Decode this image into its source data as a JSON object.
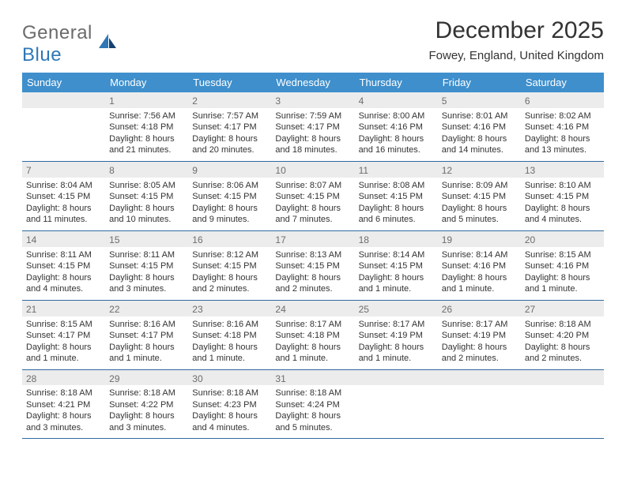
{
  "logo": {
    "word1": "General",
    "word2": "Blue"
  },
  "title": "December 2025",
  "location": "Fowey, England, United Kingdom",
  "colors": {
    "header_bg": "#3e8fcc",
    "header_text": "#ffffff",
    "daynum_bg": "#ececec",
    "daynum_text": "#6d6d6d",
    "border": "#2f6aa0",
    "logo_gray": "#6b6b6b",
    "logo_blue": "#2f77b6"
  },
  "daysOfWeek": [
    "Sunday",
    "Monday",
    "Tuesday",
    "Wednesday",
    "Thursday",
    "Friday",
    "Saturday"
  ],
  "weeks": [
    [
      {
        "n": "",
        "lines": []
      },
      {
        "n": "1",
        "lines": [
          "Sunrise: 7:56 AM",
          "Sunset: 4:18 PM",
          "Daylight: 8 hours and 21 minutes."
        ]
      },
      {
        "n": "2",
        "lines": [
          "Sunrise: 7:57 AM",
          "Sunset: 4:17 PM",
          "Daylight: 8 hours and 20 minutes."
        ]
      },
      {
        "n": "3",
        "lines": [
          "Sunrise: 7:59 AM",
          "Sunset: 4:17 PM",
          "Daylight: 8 hours and 18 minutes."
        ]
      },
      {
        "n": "4",
        "lines": [
          "Sunrise: 8:00 AM",
          "Sunset: 4:16 PM",
          "Daylight: 8 hours and 16 minutes."
        ]
      },
      {
        "n": "5",
        "lines": [
          "Sunrise: 8:01 AM",
          "Sunset: 4:16 PM",
          "Daylight: 8 hours and 14 minutes."
        ]
      },
      {
        "n": "6",
        "lines": [
          "Sunrise: 8:02 AM",
          "Sunset: 4:16 PM",
          "Daylight: 8 hours and 13 minutes."
        ]
      }
    ],
    [
      {
        "n": "7",
        "lines": [
          "Sunrise: 8:04 AM",
          "Sunset: 4:15 PM",
          "Daylight: 8 hours and 11 minutes."
        ]
      },
      {
        "n": "8",
        "lines": [
          "Sunrise: 8:05 AM",
          "Sunset: 4:15 PM",
          "Daylight: 8 hours and 10 minutes."
        ]
      },
      {
        "n": "9",
        "lines": [
          "Sunrise: 8:06 AM",
          "Sunset: 4:15 PM",
          "Daylight: 8 hours and 9 minutes."
        ]
      },
      {
        "n": "10",
        "lines": [
          "Sunrise: 8:07 AM",
          "Sunset: 4:15 PM",
          "Daylight: 8 hours and 7 minutes."
        ]
      },
      {
        "n": "11",
        "lines": [
          "Sunrise: 8:08 AM",
          "Sunset: 4:15 PM",
          "Daylight: 8 hours and 6 minutes."
        ]
      },
      {
        "n": "12",
        "lines": [
          "Sunrise: 8:09 AM",
          "Sunset: 4:15 PM",
          "Daylight: 8 hours and 5 minutes."
        ]
      },
      {
        "n": "13",
        "lines": [
          "Sunrise: 8:10 AM",
          "Sunset: 4:15 PM",
          "Daylight: 8 hours and 4 minutes."
        ]
      }
    ],
    [
      {
        "n": "14",
        "lines": [
          "Sunrise: 8:11 AM",
          "Sunset: 4:15 PM",
          "Daylight: 8 hours and 4 minutes."
        ]
      },
      {
        "n": "15",
        "lines": [
          "Sunrise: 8:11 AM",
          "Sunset: 4:15 PM",
          "Daylight: 8 hours and 3 minutes."
        ]
      },
      {
        "n": "16",
        "lines": [
          "Sunrise: 8:12 AM",
          "Sunset: 4:15 PM",
          "Daylight: 8 hours and 2 minutes."
        ]
      },
      {
        "n": "17",
        "lines": [
          "Sunrise: 8:13 AM",
          "Sunset: 4:15 PM",
          "Daylight: 8 hours and 2 minutes."
        ]
      },
      {
        "n": "18",
        "lines": [
          "Sunrise: 8:14 AM",
          "Sunset: 4:15 PM",
          "Daylight: 8 hours and 1 minute."
        ]
      },
      {
        "n": "19",
        "lines": [
          "Sunrise: 8:14 AM",
          "Sunset: 4:16 PM",
          "Daylight: 8 hours and 1 minute."
        ]
      },
      {
        "n": "20",
        "lines": [
          "Sunrise: 8:15 AM",
          "Sunset: 4:16 PM",
          "Daylight: 8 hours and 1 minute."
        ]
      }
    ],
    [
      {
        "n": "21",
        "lines": [
          "Sunrise: 8:15 AM",
          "Sunset: 4:17 PM",
          "Daylight: 8 hours and 1 minute."
        ]
      },
      {
        "n": "22",
        "lines": [
          "Sunrise: 8:16 AM",
          "Sunset: 4:17 PM",
          "Daylight: 8 hours and 1 minute."
        ]
      },
      {
        "n": "23",
        "lines": [
          "Sunrise: 8:16 AM",
          "Sunset: 4:18 PM",
          "Daylight: 8 hours and 1 minute."
        ]
      },
      {
        "n": "24",
        "lines": [
          "Sunrise: 8:17 AM",
          "Sunset: 4:18 PM",
          "Daylight: 8 hours and 1 minute."
        ]
      },
      {
        "n": "25",
        "lines": [
          "Sunrise: 8:17 AM",
          "Sunset: 4:19 PM",
          "Daylight: 8 hours and 1 minute."
        ]
      },
      {
        "n": "26",
        "lines": [
          "Sunrise: 8:17 AM",
          "Sunset: 4:19 PM",
          "Daylight: 8 hours and 2 minutes."
        ]
      },
      {
        "n": "27",
        "lines": [
          "Sunrise: 8:18 AM",
          "Sunset: 4:20 PM",
          "Daylight: 8 hours and 2 minutes."
        ]
      }
    ],
    [
      {
        "n": "28",
        "lines": [
          "Sunrise: 8:18 AM",
          "Sunset: 4:21 PM",
          "Daylight: 8 hours and 3 minutes."
        ]
      },
      {
        "n": "29",
        "lines": [
          "Sunrise: 8:18 AM",
          "Sunset: 4:22 PM",
          "Daylight: 8 hours and 3 minutes."
        ]
      },
      {
        "n": "30",
        "lines": [
          "Sunrise: 8:18 AM",
          "Sunset: 4:23 PM",
          "Daylight: 8 hours and 4 minutes."
        ]
      },
      {
        "n": "31",
        "lines": [
          "Sunrise: 8:18 AM",
          "Sunset: 4:24 PM",
          "Daylight: 8 hours and 5 minutes."
        ]
      },
      {
        "n": "",
        "lines": []
      },
      {
        "n": "",
        "lines": []
      },
      {
        "n": "",
        "lines": []
      }
    ]
  ]
}
